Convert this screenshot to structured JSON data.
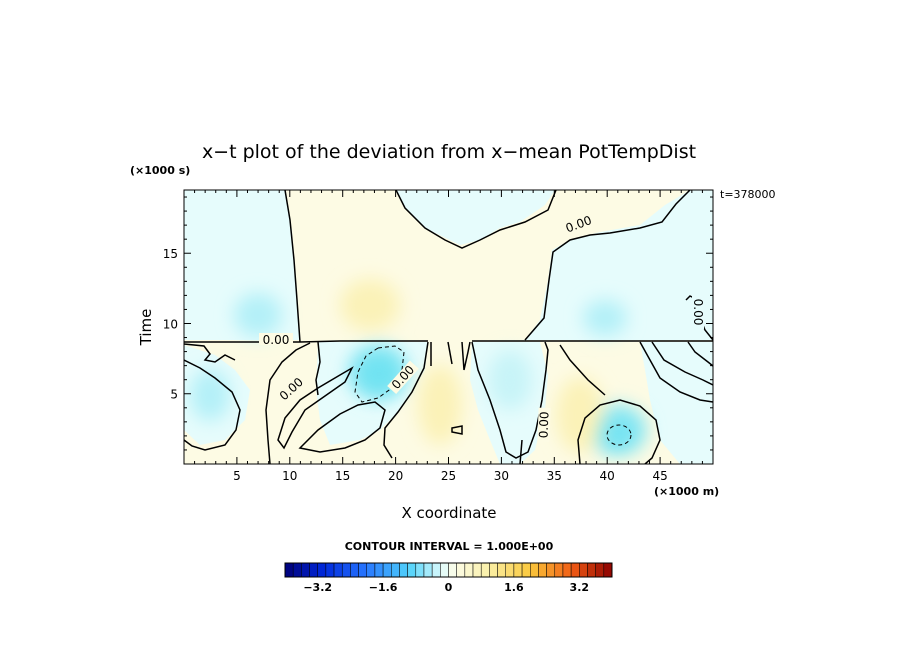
{
  "chart_data": {
    "type": "heatmap",
    "title": "x−t plot of the deviation from x−mean PotTempDist",
    "xlabel": "X coordinate",
    "ylabel": "Time",
    "x_unit": "(×1000 m)",
    "y_unit": "(×1000 s)",
    "time_annotation": "t=378000",
    "xlim": [
      0,
      50
    ],
    "ylim": [
      0,
      19.5
    ],
    "x_ticks": [
      5,
      10,
      15,
      20,
      25,
      30,
      35,
      40,
      45
    ],
    "y_ticks": [
      5,
      10,
      15
    ],
    "grid": false,
    "contour_interval_label": "CONTOUR INTERVAL = 1.000E+00",
    "contour_label": "0.00",
    "colorbar": {
      "range": [
        -4.0,
        4.0
      ],
      "tick_values": [
        -3.2,
        -1.6,
        0,
        1.6,
        3.2
      ],
      "tick_labels": [
        "−3.2",
        "−1.6",
        "0",
        "1.6",
        "3.2"
      ]
    },
    "regions": [
      {
        "name": "upper-west-cool",
        "x": 6,
        "y": 15,
        "value": -0.25
      },
      {
        "name": "upper-central-warm",
        "x": 17,
        "y": 15,
        "value": 0.2
      },
      {
        "name": "upper-right-cool",
        "x": 41,
        "y": 14,
        "value": -0.3
      },
      {
        "name": "lower-cold-core",
        "x": 18.5,
        "y": 6.5,
        "value": -1.5
      },
      {
        "name": "lower-cold-cell",
        "x": 41,
        "y": 2,
        "value": -1.2
      },
      {
        "name": "lower-warm-band",
        "x": 25,
        "y": 5,
        "value": 0.5
      }
    ]
  },
  "colors": {
    "cool_weak": "#e6fcfc",
    "cool_mid": "#b4f0f8",
    "cool_strong": "#60e0f0",
    "warm_weak": "#fdfbe4",
    "warm_mid": "#fbf2b8",
    "neutral": "#f4fbee"
  }
}
